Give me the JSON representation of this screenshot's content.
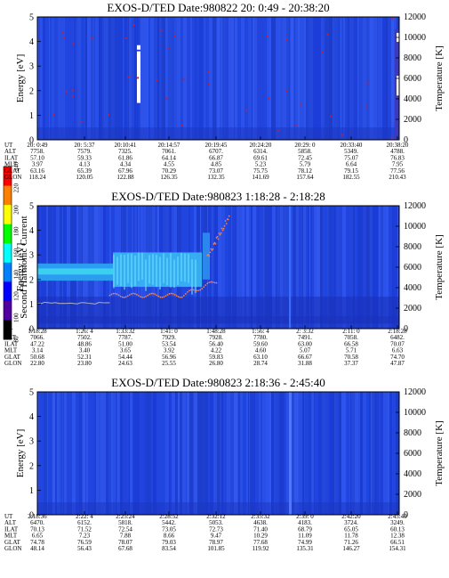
{
  "figure": {
    "colorbar": {
      "label": "Second Harmonic Current",
      "ticks": [
        "240",
        "220",
        "200",
        "180",
        "160",
        "140",
        "120",
        "100",
        "80"
      ],
      "colors": [
        "#ff0000",
        "#ff8000",
        "#ffff00",
        "#00ff00",
        "#00ffff",
        "#0080ff",
        "#0000ff",
        "#5000a0",
        "#000000"
      ]
    }
  },
  "chart_data": [
    {
      "type": "heatmap",
      "title": "EXOS-D/TED   Date:980822  20: 0:49 - 20:38:20",
      "ylabel": "Energy [eV]",
      "ylim": [
        0,
        5
      ],
      "yticks": [
        "0",
        "1",
        "2",
        "3",
        "4",
        "5"
      ],
      "y2label": "Temperature [K]",
      "y2lim": [
        0,
        12000
      ],
      "y2ticks": [
        "0",
        "2000",
        "4000",
        "6000",
        "8000",
        "10000",
        "12000"
      ],
      "table": {
        "row_labels": [
          "UT",
          "ALT",
          "ILAT",
          "MLT",
          "GLAT",
          "GLON"
        ],
        "columns": [
          [
            "20: 0:49",
            "7758.",
            "57.10",
            "3.97",
            "63.16",
            "118.24"
          ],
          [
            "20: 5:37",
            "7579.",
            "59.33",
            "4.13",
            "65.39",
            "120.05"
          ],
          [
            "20:10:41",
            "7325.",
            "61.86",
            "4.34",
            "67.96",
            "122.88"
          ],
          [
            "20:14:57",
            "7061.",
            "64.14",
            "4.55",
            "70.29",
            "126.35"
          ],
          [
            "20:19:45",
            "6707.",
            "66.87",
            "4.85",
            "73.07",
            "132.35"
          ],
          [
            "20:24:20",
            "6314.",
            "69.61",
            "5.23",
            "75.75",
            "141.69"
          ],
          [
            "20:29: 0",
            "5858.",
            "72.45",
            "5.79",
            "78.12",
            "157.64"
          ],
          [
            "20:33:40",
            "5349.",
            "75.07",
            "6.64",
            "79.15",
            "182.55"
          ],
          [
            "20:38:20",
            "4788.",
            "76.83",
            "7.95",
            "77.56",
            "210.43"
          ]
        ]
      }
    },
    {
      "type": "heatmap",
      "title": "EXOS-D/TED   Date:980823   1:18:28 - 2:18:28",
      "ylabel": "Energy [eV]",
      "ylim": [
        0,
        5
      ],
      "yticks": [
        "0",
        "1",
        "2",
        "3",
        "4",
        "5"
      ],
      "y2label": "Temperature [K]",
      "y2lim": [
        0,
        12000
      ],
      "y2ticks": [
        "0",
        "2000",
        "4000",
        "6000",
        "8000",
        "10000",
        "12000"
      ],
      "table": {
        "row_labels": [
          "UT",
          "ALT",
          "ILAT",
          "MLT",
          "GLAT",
          "GLON"
        ],
        "columns": [
          [
            "1:18:28",
            "7066.",
            "47.22",
            "3.14",
            "50.68",
            "22.80"
          ],
          [
            "1:26: 4",
            "7502.",
            "48.86",
            "3.40",
            "52.31",
            "23.80"
          ],
          [
            "1:33:32",
            "7787.",
            "51.00",
            "3.65",
            "54.44",
            "24.63"
          ],
          [
            "1:41: 0",
            "7929.",
            "53.54",
            "3.92",
            "56.96",
            "25.55"
          ],
          [
            "1:48:28",
            "7928.",
            "56.40",
            "4.22",
            "59.83",
            "26.80"
          ],
          [
            "1:56: 4",
            "7780.",
            "59.60",
            "4.60",
            "63.10",
            "28.74"
          ],
          [
            "2: 3:32",
            "7491.",
            "63.00",
            "5.07",
            "66.67",
            "31.88"
          ],
          [
            "2:11: 0",
            "7058.",
            "66.58",
            "5.71",
            "70.58",
            "37.37"
          ],
          [
            "2:18:28",
            "6482.",
            "70.07",
            "6.63",
            "74.70",
            "47.87"
          ]
        ]
      }
    },
    {
      "type": "heatmap",
      "title": "EXOS-D/TED   Date:980823   2:18:36 - 2:45:40",
      "ylabel": "Energy [eV]",
      "ylim": [
        0,
        5
      ],
      "yticks": [
        "0",
        "1",
        "2",
        "3",
        "4",
        "5"
      ],
      "y2label": "Temperature [K]",
      "y2lim": [
        0,
        12000
      ],
      "y2ticks": [
        "0",
        "2000",
        "4000",
        "6000",
        "8000",
        "10000",
        "12000"
      ],
      "table": {
        "row_labels": [
          "UT",
          "ALT",
          "ILAT",
          "MLT",
          "GLAT",
          "GLON"
        ],
        "columns": [
          [
            "2:18:36",
            "6470.",
            "70.13",
            "6.65",
            "74.78",
            "48.14"
          ],
          [
            "2:22: 4",
            "6152.",
            "71.52",
            "7.23",
            "76.59",
            "56.43"
          ],
          [
            "2:25:24",
            "5818.",
            "72.54",
            "7.88",
            "78.07",
            "67.68"
          ],
          [
            "2:28:52",
            "5442.",
            "73.05",
            "8.66",
            "79.03",
            "83.54"
          ],
          [
            "2:32:12",
            "5053.",
            "72.73",
            "9.47",
            "78.97",
            "101.85"
          ],
          [
            "2:35:32",
            "4638.",
            "71.40",
            "10.29",
            "77.68",
            "119.92"
          ],
          [
            "2:39: 0",
            "4183.",
            "68.79",
            "11.09",
            "74.99",
            "135.31"
          ],
          [
            "2:42:20",
            "3724.",
            "65.05",
            "11.78",
            "71.26",
            "146.27"
          ],
          [
            "2:45:40",
            "3249.",
            "60.13",
            "12.38",
            "66.51",
            "154.31"
          ]
        ]
      }
    }
  ]
}
